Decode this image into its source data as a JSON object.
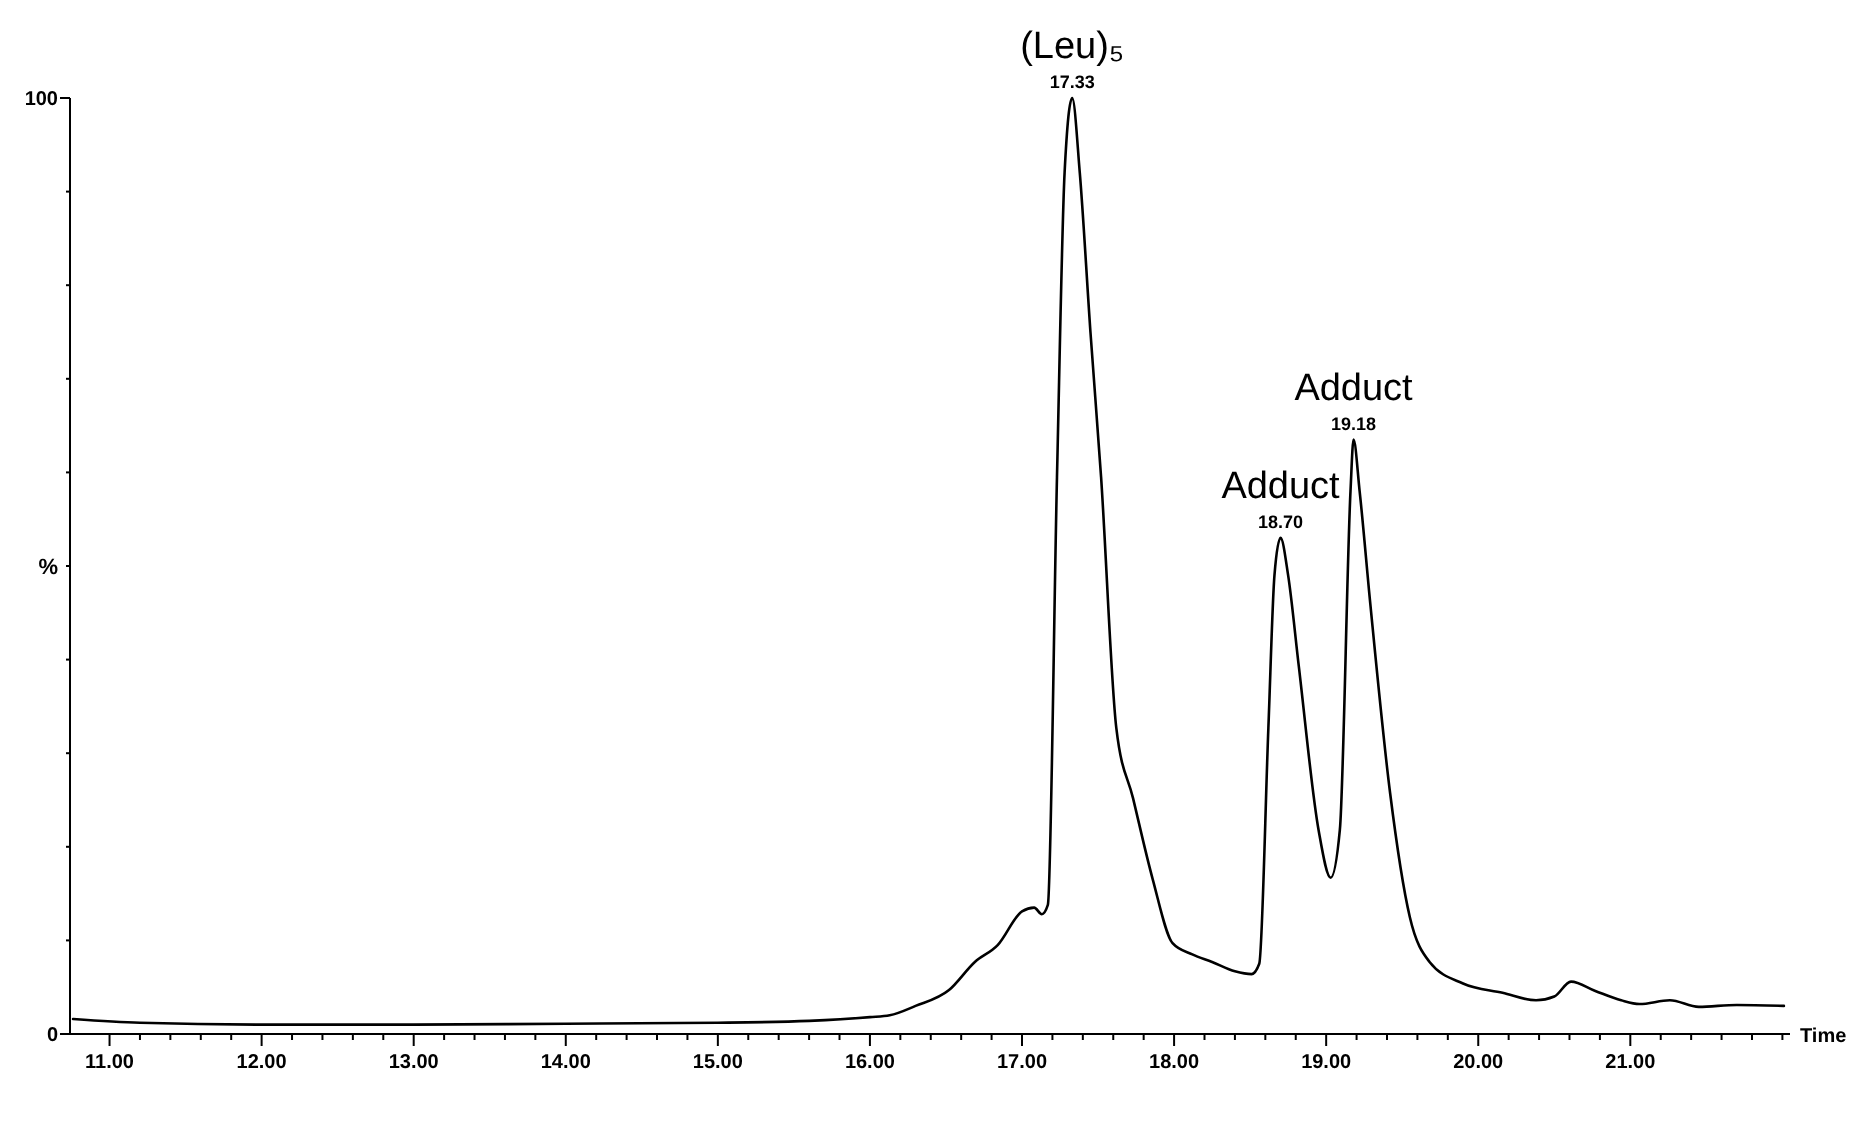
{
  "chart_data": {
    "type": "line",
    "xlabel": "Time",
    "ylabel": "%",
    "xlim": [
      10.74,
      22.05
    ],
    "ylim": [
      0,
      100
    ],
    "xticks": [
      {
        "value": 11,
        "label": "11.00"
      },
      {
        "value": 11.2,
        "label": null
      },
      {
        "value": 11.4,
        "label": null
      },
      {
        "value": 11.6,
        "label": null
      },
      {
        "value": 11.8,
        "label": null
      },
      {
        "value": 12,
        "label": "12.00"
      },
      {
        "value": 12.2,
        "label": null
      },
      {
        "value": 12.4,
        "label": null
      },
      {
        "value": 12.6,
        "label": null
      },
      {
        "value": 12.8,
        "label": null
      },
      {
        "value": 13,
        "label": "13.00"
      },
      {
        "value": 13.2,
        "label": null
      },
      {
        "value": 13.4,
        "label": null
      },
      {
        "value": 13.6,
        "label": null
      },
      {
        "value": 13.8,
        "label": null
      },
      {
        "value": 14,
        "label": "14.00"
      },
      {
        "value": 14.2,
        "label": null
      },
      {
        "value": 14.4,
        "label": null
      },
      {
        "value": 14.6,
        "label": null
      },
      {
        "value": 14.8,
        "label": null
      },
      {
        "value": 15,
        "label": "15.00"
      },
      {
        "value": 15.2,
        "label": null
      },
      {
        "value": 15.4,
        "label": null
      },
      {
        "value": 15.6,
        "label": null
      },
      {
        "value": 15.8,
        "label": null
      },
      {
        "value": 16,
        "label": "16.00"
      },
      {
        "value": 16.2,
        "label": null
      },
      {
        "value": 16.4,
        "label": null
      },
      {
        "value": 16.6,
        "label": null
      },
      {
        "value": 16.8,
        "label": null
      },
      {
        "value": 17,
        "label": "17.00"
      },
      {
        "value": 17.2,
        "label": null
      },
      {
        "value": 17.4,
        "label": null
      },
      {
        "value": 17.6,
        "label": null
      },
      {
        "value": 17.8,
        "label": null
      },
      {
        "value": 18,
        "label": "18.00"
      },
      {
        "value": 18.2,
        "label": null
      },
      {
        "value": 18.4,
        "label": null
      },
      {
        "value": 18.6,
        "label": null
      },
      {
        "value": 18.8,
        "label": null
      },
      {
        "value": 19,
        "label": "19.00"
      },
      {
        "value": 19.2,
        "label": null
      },
      {
        "value": 19.4,
        "label": null
      },
      {
        "value": 19.6,
        "label": null
      },
      {
        "value": 19.8,
        "label": null
      },
      {
        "value": 20,
        "label": "20.00"
      },
      {
        "value": 20.2,
        "label": null
      },
      {
        "value": 20.4,
        "label": null
      },
      {
        "value": 20.6,
        "label": null
      },
      {
        "value": 20.8,
        "label": null
      },
      {
        "value": 21,
        "label": "21.00"
      },
      {
        "value": 21.2,
        "label": null
      },
      {
        "value": 21.4,
        "label": null
      },
      {
        "value": 21.6,
        "label": null
      },
      {
        "value": 21.8,
        "label": null
      },
      {
        "value": 22,
        "label": null
      }
    ],
    "yticks": [
      0,
      {
        "value": 10,
        "label": null
      },
      {
        "value": 20,
        "label": null
      },
      {
        "value": 30,
        "label": null
      },
      {
        "value": 40,
        "label": null
      },
      {
        "value": 50,
        "label": null
      },
      {
        "value": 60,
        "label": null
      },
      {
        "value": 70,
        "label": null
      },
      {
        "value": 80,
        "label": null
      },
      {
        "value": 90,
        "label": null
      },
      100
    ],
    "grid": false,
    "line_style": "solid",
    "series": [
      {
        "color": "#000000",
        "x": [
          10.76,
          11.2,
          12,
          13,
          14,
          15,
          15.6,
          16,
          16.13,
          16.3,
          16.52,
          16.69,
          16.84,
          17,
          17.08,
          17.13,
          17.17,
          17.23,
          17.28,
          17.33,
          17.38,
          17.45,
          17.52,
          17.62,
          17.73,
          17.86,
          17.99,
          18.12,
          18.25,
          18.4,
          18.51,
          18.56,
          18.62,
          18.66,
          18.7,
          18.75,
          18.82,
          18.95,
          19.03,
          19.09,
          19.16,
          19.18,
          19.22,
          19.29,
          19.42,
          19.55,
          19.68,
          19.9,
          20.16,
          20.38,
          20.5,
          20.61,
          20.77,
          20.94,
          21.06,
          21.26,
          21.45,
          21.7,
          22.01
        ],
        "values": [
          1.6,
          1.2,
          1.0,
          1.0,
          1.1,
          1.2,
          1.4,
          1.8,
          2.0,
          3.0,
          4.7,
          7.7,
          9.5,
          13.1,
          13.5,
          12.8,
          13.8,
          59.5,
          92,
          100,
          92,
          75,
          59.5,
          32.7,
          25.2,
          16.5,
          9.7,
          8.5,
          7.7,
          6.7,
          6.4,
          7.5,
          32.7,
          49,
          53,
          49,
          39.3,
          21.8,
          16.7,
          21.8,
          58,
          63.5,
          58,
          46,
          25.8,
          12.5,
          7.7,
          5.4,
          4.4,
          3.6,
          4.0,
          5.6,
          4.6,
          3.6,
          3.2,
          3.6,
          2.9,
          3.1,
          3.0
        ]
      }
    ],
    "annotations": [
      {
        "text": "17.33",
        "x": 17.33,
        "y": 100
      },
      {
        "text": "(Leu)₅",
        "x": 17.33,
        "y": 100
      },
      {
        "text": "18.70",
        "x": 18.7,
        "y": 53
      },
      {
        "text": "Adduct",
        "x": 18.7,
        "y": 53
      },
      {
        "text": "19.18",
        "x": 19.18,
        "y": 63.5
      },
      {
        "text": "Adduct",
        "x": 19.18,
        "y": 63.5
      }
    ]
  }
}
